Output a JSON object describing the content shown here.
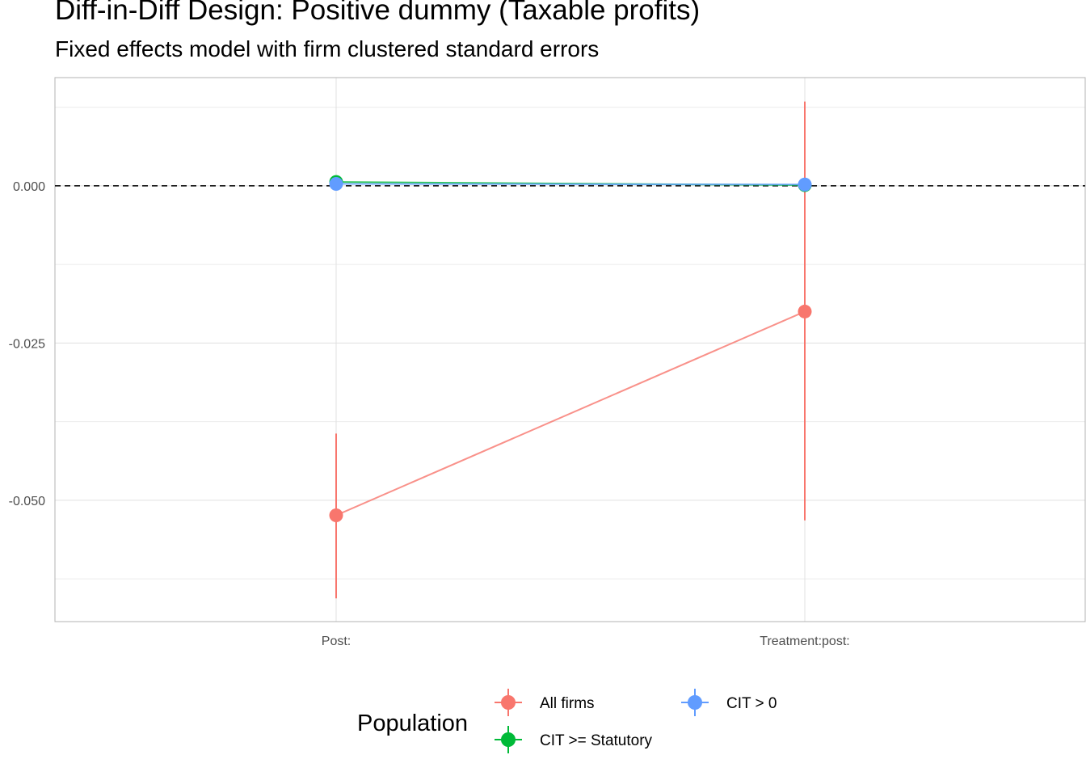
{
  "title": "Diff-in-Diff Design: Positive dummy (Taxable profits)",
  "subtitle": "Fixed effects model with firm clustered standard errors",
  "chart_data": {
    "type": "scatter",
    "title": "Diff-in-Diff Design: Positive dummy (Taxable profits)",
    "subtitle": "Fixed effects model with firm clustered standard errors",
    "categories": [
      "Post:",
      "Treatment:post:"
    ],
    "y_ticks": [
      -0.05,
      -0.025,
      0.0
    ],
    "y_tick_labels": [
      "-0.050",
      "-0.025",
      "0.000"
    ],
    "ylim": [
      -0.0693,
      0.0172
    ],
    "reference_line": {
      "y": 0,
      "style": "dashed",
      "color": "#000000"
    },
    "grid": true,
    "legend": {
      "title": "Population",
      "position": "bottom"
    },
    "series": [
      {
        "name": "All firms",
        "color": "#F8766D",
        "estimate": [
          -0.0524,
          -0.02
        ],
        "ci_low": [
          -0.0656,
          -0.0532
        ],
        "ci_high": [
          -0.0394,
          0.0134
        ]
      },
      {
        "name": "CIT >= Statutory",
        "color": "#00BA38",
        "estimate": [
          0.0006,
          0.0001
        ],
        "ci_low": [
          0.0003,
          -0.0001
        ],
        "ci_high": [
          0.0009,
          0.0003
        ]
      },
      {
        "name": "CIT > 0",
        "color": "#619CFF",
        "estimate": [
          0.0003,
          0.0002
        ],
        "ci_low": [
          0.0001,
          0.0
        ],
        "ci_high": [
          0.0005,
          0.0004
        ]
      }
    ]
  }
}
